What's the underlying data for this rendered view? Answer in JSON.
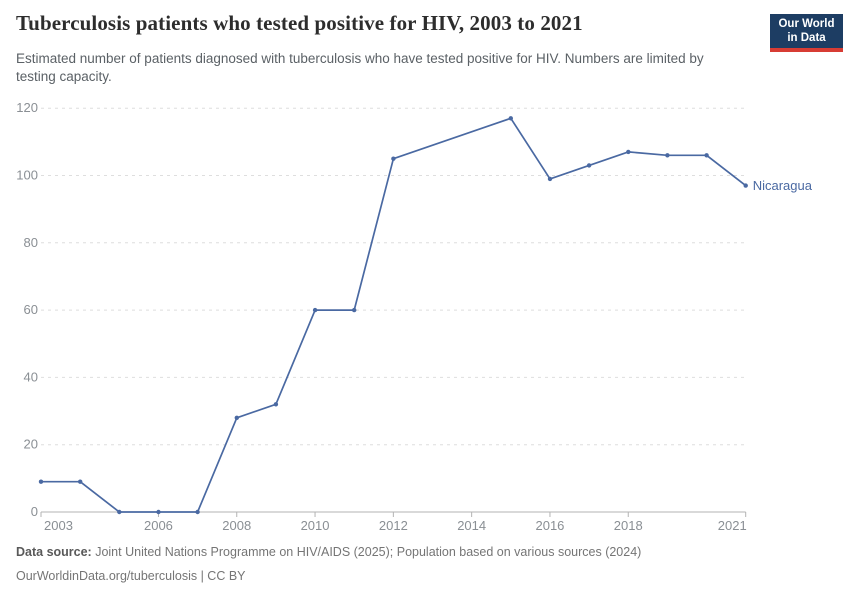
{
  "header": {
    "title": "Tuberculosis patients who tested positive for HIV, 2003 to 2021",
    "subtitle": "Estimated number of patients diagnosed with tuberculosis who have tested positive for HIV. Numbers are limited by testing capacity.",
    "logo": {
      "line1": "Our World",
      "line2": "in Data",
      "bg_color": "#1d3d63",
      "bar_color": "#d73c34"
    }
  },
  "chart_data": {
    "type": "line",
    "title": "Tuberculosis patients who tested positive for HIV, 2003 to 2021",
    "xlabel": "",
    "ylabel": "",
    "x_range": [
      2003,
      2021
    ],
    "y_range": [
      0,
      120
    ],
    "x_ticks": [
      2003,
      2006,
      2008,
      2010,
      2012,
      2014,
      2016,
      2018,
      2021
    ],
    "y_ticks": [
      0,
      20,
      40,
      60,
      80,
      100,
      120
    ],
    "grid": true,
    "legend_position": "end-of-line entity label",
    "notes": "No markers for 2013 and 2014; the line interpolates between 2012 and 2015.",
    "style": {
      "grid_color": "#dedede",
      "axis_color": "#b3b3b3",
      "tick_label_color": "#8a8f94"
    },
    "series": [
      {
        "name": "Nicaragua",
        "color": "#4a69a2",
        "points": [
          {
            "x": 2003,
            "y": 9
          },
          {
            "x": 2004,
            "y": 9
          },
          {
            "x": 2005,
            "y": 0
          },
          {
            "x": 2006,
            "y": 0
          },
          {
            "x": 2007,
            "y": 0
          },
          {
            "x": 2008,
            "y": 28
          },
          {
            "x": 2009,
            "y": 32
          },
          {
            "x": 2010,
            "y": 60
          },
          {
            "x": 2011,
            "y": 60
          },
          {
            "x": 2012,
            "y": 105
          },
          {
            "x": 2015,
            "y": 117
          },
          {
            "x": 2016,
            "y": 99
          },
          {
            "x": 2017,
            "y": 103
          },
          {
            "x": 2018,
            "y": 107
          },
          {
            "x": 2019,
            "y": 106
          },
          {
            "x": 2020,
            "y": 106
          },
          {
            "x": 2021,
            "y": 97
          }
        ]
      }
    ]
  },
  "footer": {
    "datasource_label": "Data source:",
    "datasource_text": " Joint United Nations Programme on HIV/AIDS (2025); Population based on various sources (2024)",
    "link_text": "OurWorldinData.org/tuberculosis | CC BY"
  }
}
